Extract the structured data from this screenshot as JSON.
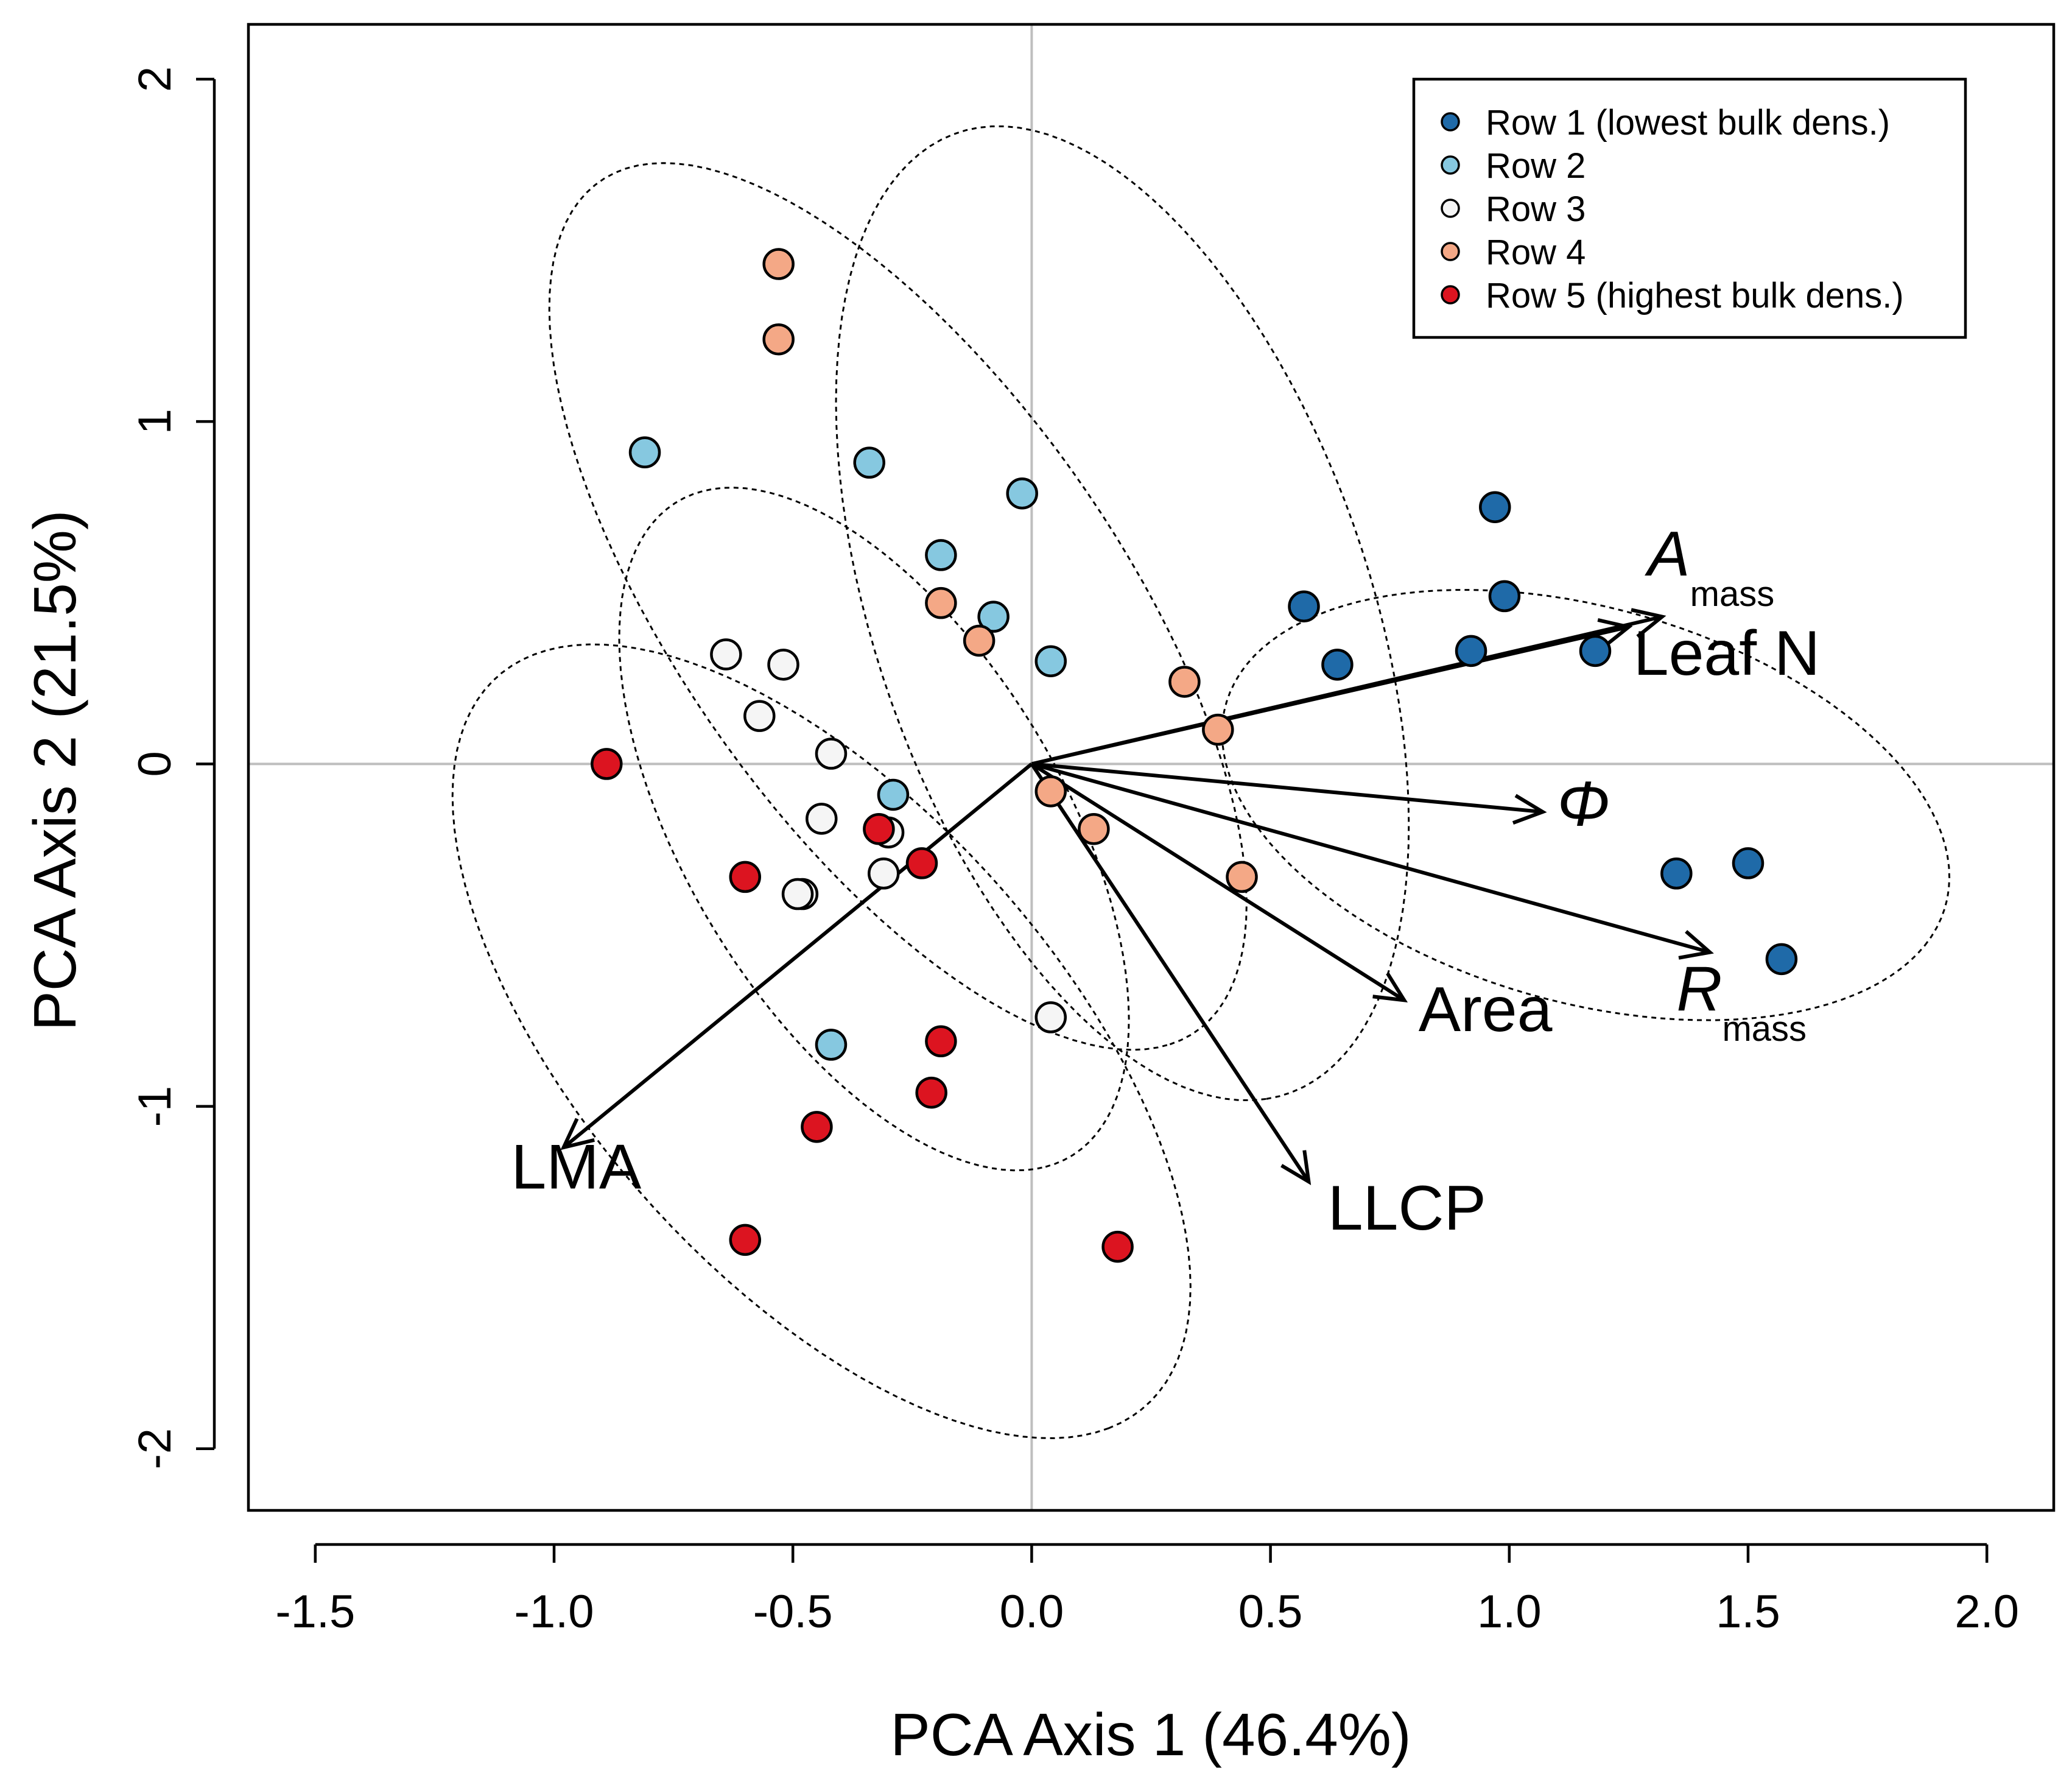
{
  "chart_data": {
    "type": "scatter",
    "title": "",
    "xlabel": "PCA Axis 1 (46.4%)",
    "ylabel": "PCA Axis 2 (21.5%)",
    "xlim": [
      -1.64,
      2.14
    ],
    "ylim": [
      -2.18,
      2.16
    ],
    "x_ticks": [
      -1.5,
      -1.0,
      -0.5,
      0.0,
      0.5,
      1.0,
      1.5,
      2.0
    ],
    "x_tick_labels": [
      "-1.5",
      "-1.0",
      "-0.5",
      "0.0",
      "0.5",
      "1.0",
      "1.5",
      "2.0"
    ],
    "y_ticks": [
      -2,
      -1,
      0,
      1,
      2
    ],
    "y_tick_labels": [
      "-2",
      "-1",
      "0",
      "1",
      "2"
    ],
    "reference_lines": {
      "x": 0,
      "y": 0,
      "color": "#bebebe"
    },
    "grid": false,
    "legend_position": "top-right",
    "series": [
      {
        "name": "Row 1 (lowest bulk dens.)",
        "color": "#1f6aa8",
        "points": [
          [
            0.97,
            0.75
          ],
          [
            0.57,
            0.46
          ],
          [
            0.99,
            0.49
          ],
          [
            0.64,
            0.29
          ],
          [
            0.92,
            0.33
          ],
          [
            1.18,
            0.33
          ],
          [
            1.35,
            -0.32
          ],
          [
            1.5,
            -0.29
          ],
          [
            1.57,
            -0.57
          ]
        ]
      },
      {
        "name": "Row 2",
        "color": "#86c8e0",
        "points": [
          [
            -0.81,
            0.91
          ],
          [
            -0.34,
            0.88
          ],
          [
            -0.02,
            0.79
          ],
          [
            -0.19,
            0.61
          ],
          [
            -0.08,
            0.43
          ],
          [
            0.04,
            0.3
          ],
          [
            -0.29,
            -0.09
          ],
          [
            -0.42,
            -0.82
          ]
        ]
      },
      {
        "name": "Row 3",
        "color": "#f5f5f5",
        "points": [
          [
            -0.64,
            0.32
          ],
          [
            -0.52,
            0.29
          ],
          [
            -0.57,
            0.14
          ],
          [
            -0.42,
            0.03
          ],
          [
            -0.44,
            -0.16
          ],
          [
            -0.3,
            -0.2
          ],
          [
            -0.31,
            -0.32
          ],
          [
            -0.48,
            -0.38
          ],
          [
            -0.49,
            -0.38
          ],
          [
            0.04,
            -0.74
          ]
        ]
      },
      {
        "name": "Row 4",
        "color": "#f4a886",
        "points": [
          [
            -0.53,
            1.46
          ],
          [
            -0.53,
            1.24
          ],
          [
            -0.19,
            0.47
          ],
          [
            -0.11,
            0.36
          ],
          [
            0.32,
            0.24
          ],
          [
            0.39,
            0.1
          ],
          [
            0.04,
            -0.08
          ],
          [
            0.13,
            -0.19
          ],
          [
            0.44,
            -0.33
          ]
        ]
      },
      {
        "name": "Row 5 (highest bulk dens.)",
        "color": "#dc1420",
        "points": [
          [
            -0.89,
            0.0
          ],
          [
            -0.32,
            -0.19
          ],
          [
            -0.6,
            -0.33
          ],
          [
            -0.23,
            -0.29
          ],
          [
            -0.19,
            -0.81
          ],
          [
            -0.21,
            -0.96
          ],
          [
            -0.45,
            -1.06
          ],
          [
            -0.6,
            -1.39
          ],
          [
            0.18,
            -1.41
          ]
        ]
      }
    ],
    "loading_vectors": [
      {
        "label": "A",
        "subscript": "mass",
        "italic": true,
        "end": [
          1.32,
          0.43
        ],
        "label_at": [
          1.29,
          0.55
        ]
      },
      {
        "label": "Leaf N",
        "subscript": "",
        "italic": false,
        "end": [
          1.25,
          0.4
        ],
        "label_at": [
          1.26,
          0.26
        ]
      },
      {
        "label": "Φ",
        "subscript": "",
        "italic": true,
        "end": [
          1.07,
          -0.14
        ],
        "label_at": [
          1.1,
          -0.18
        ]
      },
      {
        "label": "R",
        "subscript": "mass",
        "italic": true,
        "end": [
          1.42,
          -0.55
        ],
        "label_at": [
          1.35,
          -0.72
        ]
      },
      {
        "label": "Area",
        "subscript": "",
        "italic": false,
        "end": [
          0.78,
          -0.69
        ],
        "label_at": [
          0.81,
          -0.78
        ]
      },
      {
        "label": "LLCP",
        "subscript": "",
        "italic": false,
        "end": [
          0.58,
          -1.22
        ],
        "label_at": [
          0.62,
          -1.36
        ]
      },
      {
        "label": "LMA",
        "subscript": "",
        "italic": false,
        "end": [
          -0.98,
          -1.12
        ],
        "label_at": [
          -1.09,
          -1.24
        ]
      }
    ],
    "ellipses": [
      {
        "group": "Row 1 (lowest bulk dens.)",
        "center": [
          1.16,
          -0.12
        ],
        "rx": 0.82,
        "ry": 0.55,
        "angle_deg": -30
      },
      {
        "group": "Row 2",
        "center": [
          -0.28,
          0.46
        ],
        "rx": 1.4,
        "ry": 0.5,
        "angle_deg": -66
      },
      {
        "group": "Row 3",
        "center": [
          -0.33,
          -0.19
        ],
        "rx": 1.05,
        "ry": 0.42,
        "angle_deg": -70
      },
      {
        "group": "Row 4",
        "center": [
          0.19,
          0.44
        ],
        "rx": 1.45,
        "ry": 0.53,
        "angle_deg": -78
      },
      {
        "group": "Row 5 (highest bulk dens.)",
        "center": [
          -0.44,
          -0.81
        ],
        "rx": 1.28,
        "ry": 0.55,
        "angle_deg": -62
      }
    ]
  }
}
